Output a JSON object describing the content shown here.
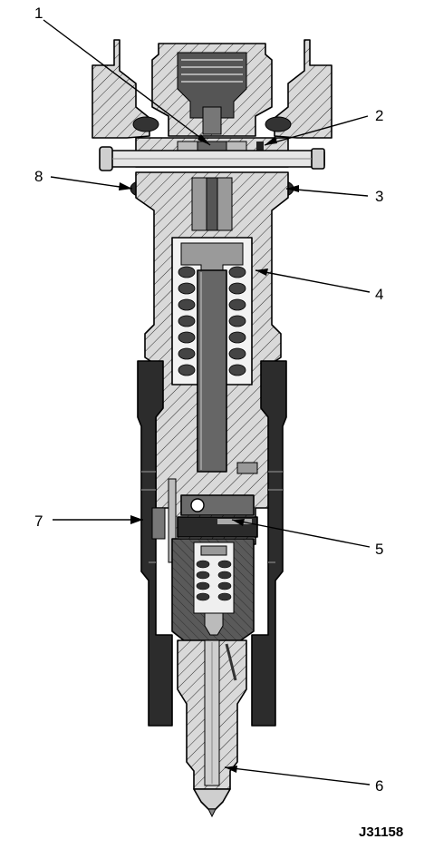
{
  "callouts": [
    "1",
    "2",
    "3",
    "4",
    "5",
    "6",
    "7",
    "8"
  ],
  "figure_id": "J31158",
  "colors": {
    "background": "#ffffff",
    "section_body": "#d9d9d9",
    "dark_part": "#555555",
    "black_part": "#262626",
    "line": "#000000"
  }
}
